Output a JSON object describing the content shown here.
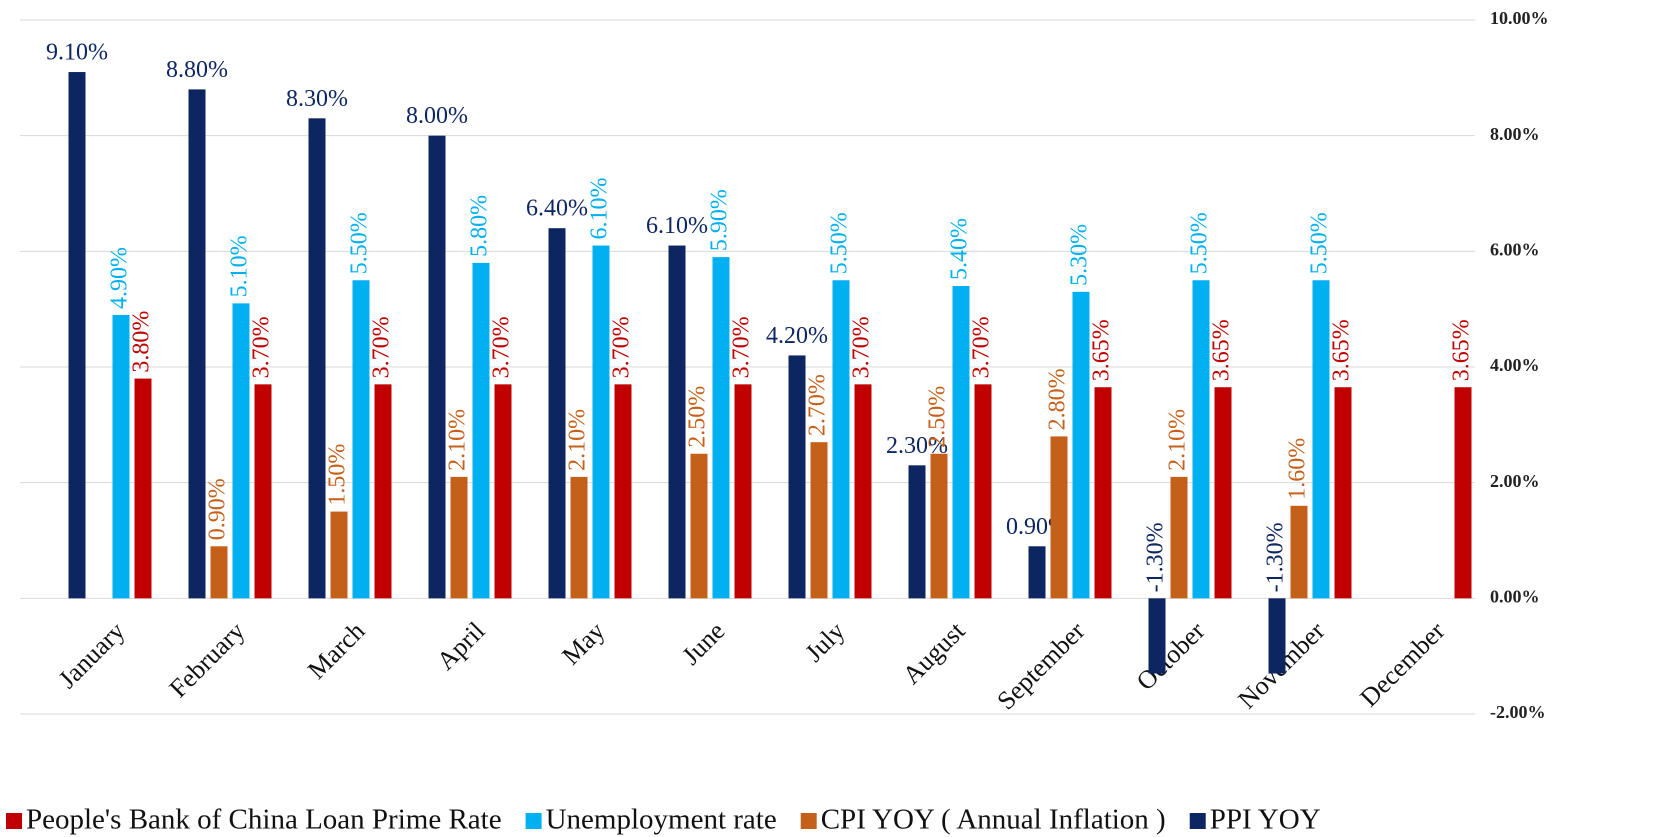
{
  "chart_data": {
    "type": "bar",
    "categories": [
      "January",
      "February",
      "March",
      "April",
      "May",
      "June",
      "July",
      "August",
      "September",
      "October",
      "November",
      "December"
    ],
    "series": [
      {
        "name": "PPI YOY",
        "color": "#0d2560",
        "values": [
          9.1,
          8.8,
          8.3,
          8.0,
          6.4,
          6.1,
          4.2,
          2.3,
          0.9,
          -1.3,
          -1.3,
          null
        ],
        "value_labels": [
          "9.10%",
          "8.80%",
          "8.30%",
          "8.00%",
          "6.40%",
          "6.10%",
          "4.20%",
          "2.30%",
          "0.90%",
          "-1.30%",
          "-1.30%",
          null
        ]
      },
      {
        "name": "CPI YOY ( Annual Inflation )",
        "color": "#c5601a",
        "values": [
          null,
          0.9,
          1.5,
          2.1,
          2.1,
          2.5,
          2.7,
          2.5,
          2.8,
          2.1,
          1.6,
          null
        ],
        "value_labels": [
          null,
          "0.90%",
          "1.50%",
          "2.10%",
          "2.10%",
          "2.50%",
          "2.70%",
          "2.50%",
          "2.80%",
          "2.10%",
          "1.60%",
          null
        ]
      },
      {
        "name": "Unemployment rate",
        "color": "#00b0f0",
        "values": [
          4.9,
          5.1,
          5.5,
          5.8,
          6.1,
          5.9,
          5.5,
          5.4,
          5.3,
          5.5,
          5.5,
          null
        ],
        "value_labels": [
          "4.90%",
          "5.10%",
          "5.50%",
          "5.80%",
          "6.10%",
          "5.90%",
          "5.50%",
          "5.40%",
          "5.30%",
          "5.50%",
          "5.50%",
          null
        ]
      },
      {
        "name": "People's Bank of China Loan Prime Rate",
        "color": "#c00000",
        "values": [
          3.8,
          3.7,
          3.7,
          3.7,
          3.7,
          3.7,
          3.7,
          3.7,
          3.65,
          3.65,
          3.65,
          3.65
        ],
        "value_labels": [
          "3.80%",
          "3.70%",
          "3.70%",
          "3.70%",
          "3.70%",
          "3.70%",
          "3.70%",
          "3.70%",
          "3.65%",
          "3.65%",
          "3.65%",
          "3.65%"
        ]
      }
    ],
    "ylim": [
      -2,
      10
    ],
    "yticks": [
      {
        "value": -2,
        "label": "-2.00%"
      },
      {
        "value": 0,
        "label": "0.00%"
      },
      {
        "value": 2,
        "label": "2.00%"
      },
      {
        "value": 4,
        "label": "4.00%"
      },
      {
        "value": 6,
        "label": "6.00%"
      },
      {
        "value": 8,
        "label": "8.00%"
      },
      {
        "value": 10,
        "label": "10.00%"
      }
    ],
    "grid": true,
    "legend_order": [
      3,
      2,
      1,
      0
    ],
    "legend": "bottom"
  }
}
